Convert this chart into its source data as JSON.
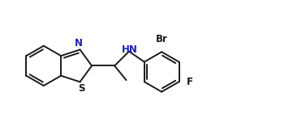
{
  "bg_color": "#ffffff",
  "line_color": "#1a1a1a",
  "n_color": "#2020aa",
  "line_width": 1.4,
  "font_size": 8.5,
  "xlim": [
    0,
    10.5
  ],
  "ylim": [
    0,
    4.5
  ]
}
